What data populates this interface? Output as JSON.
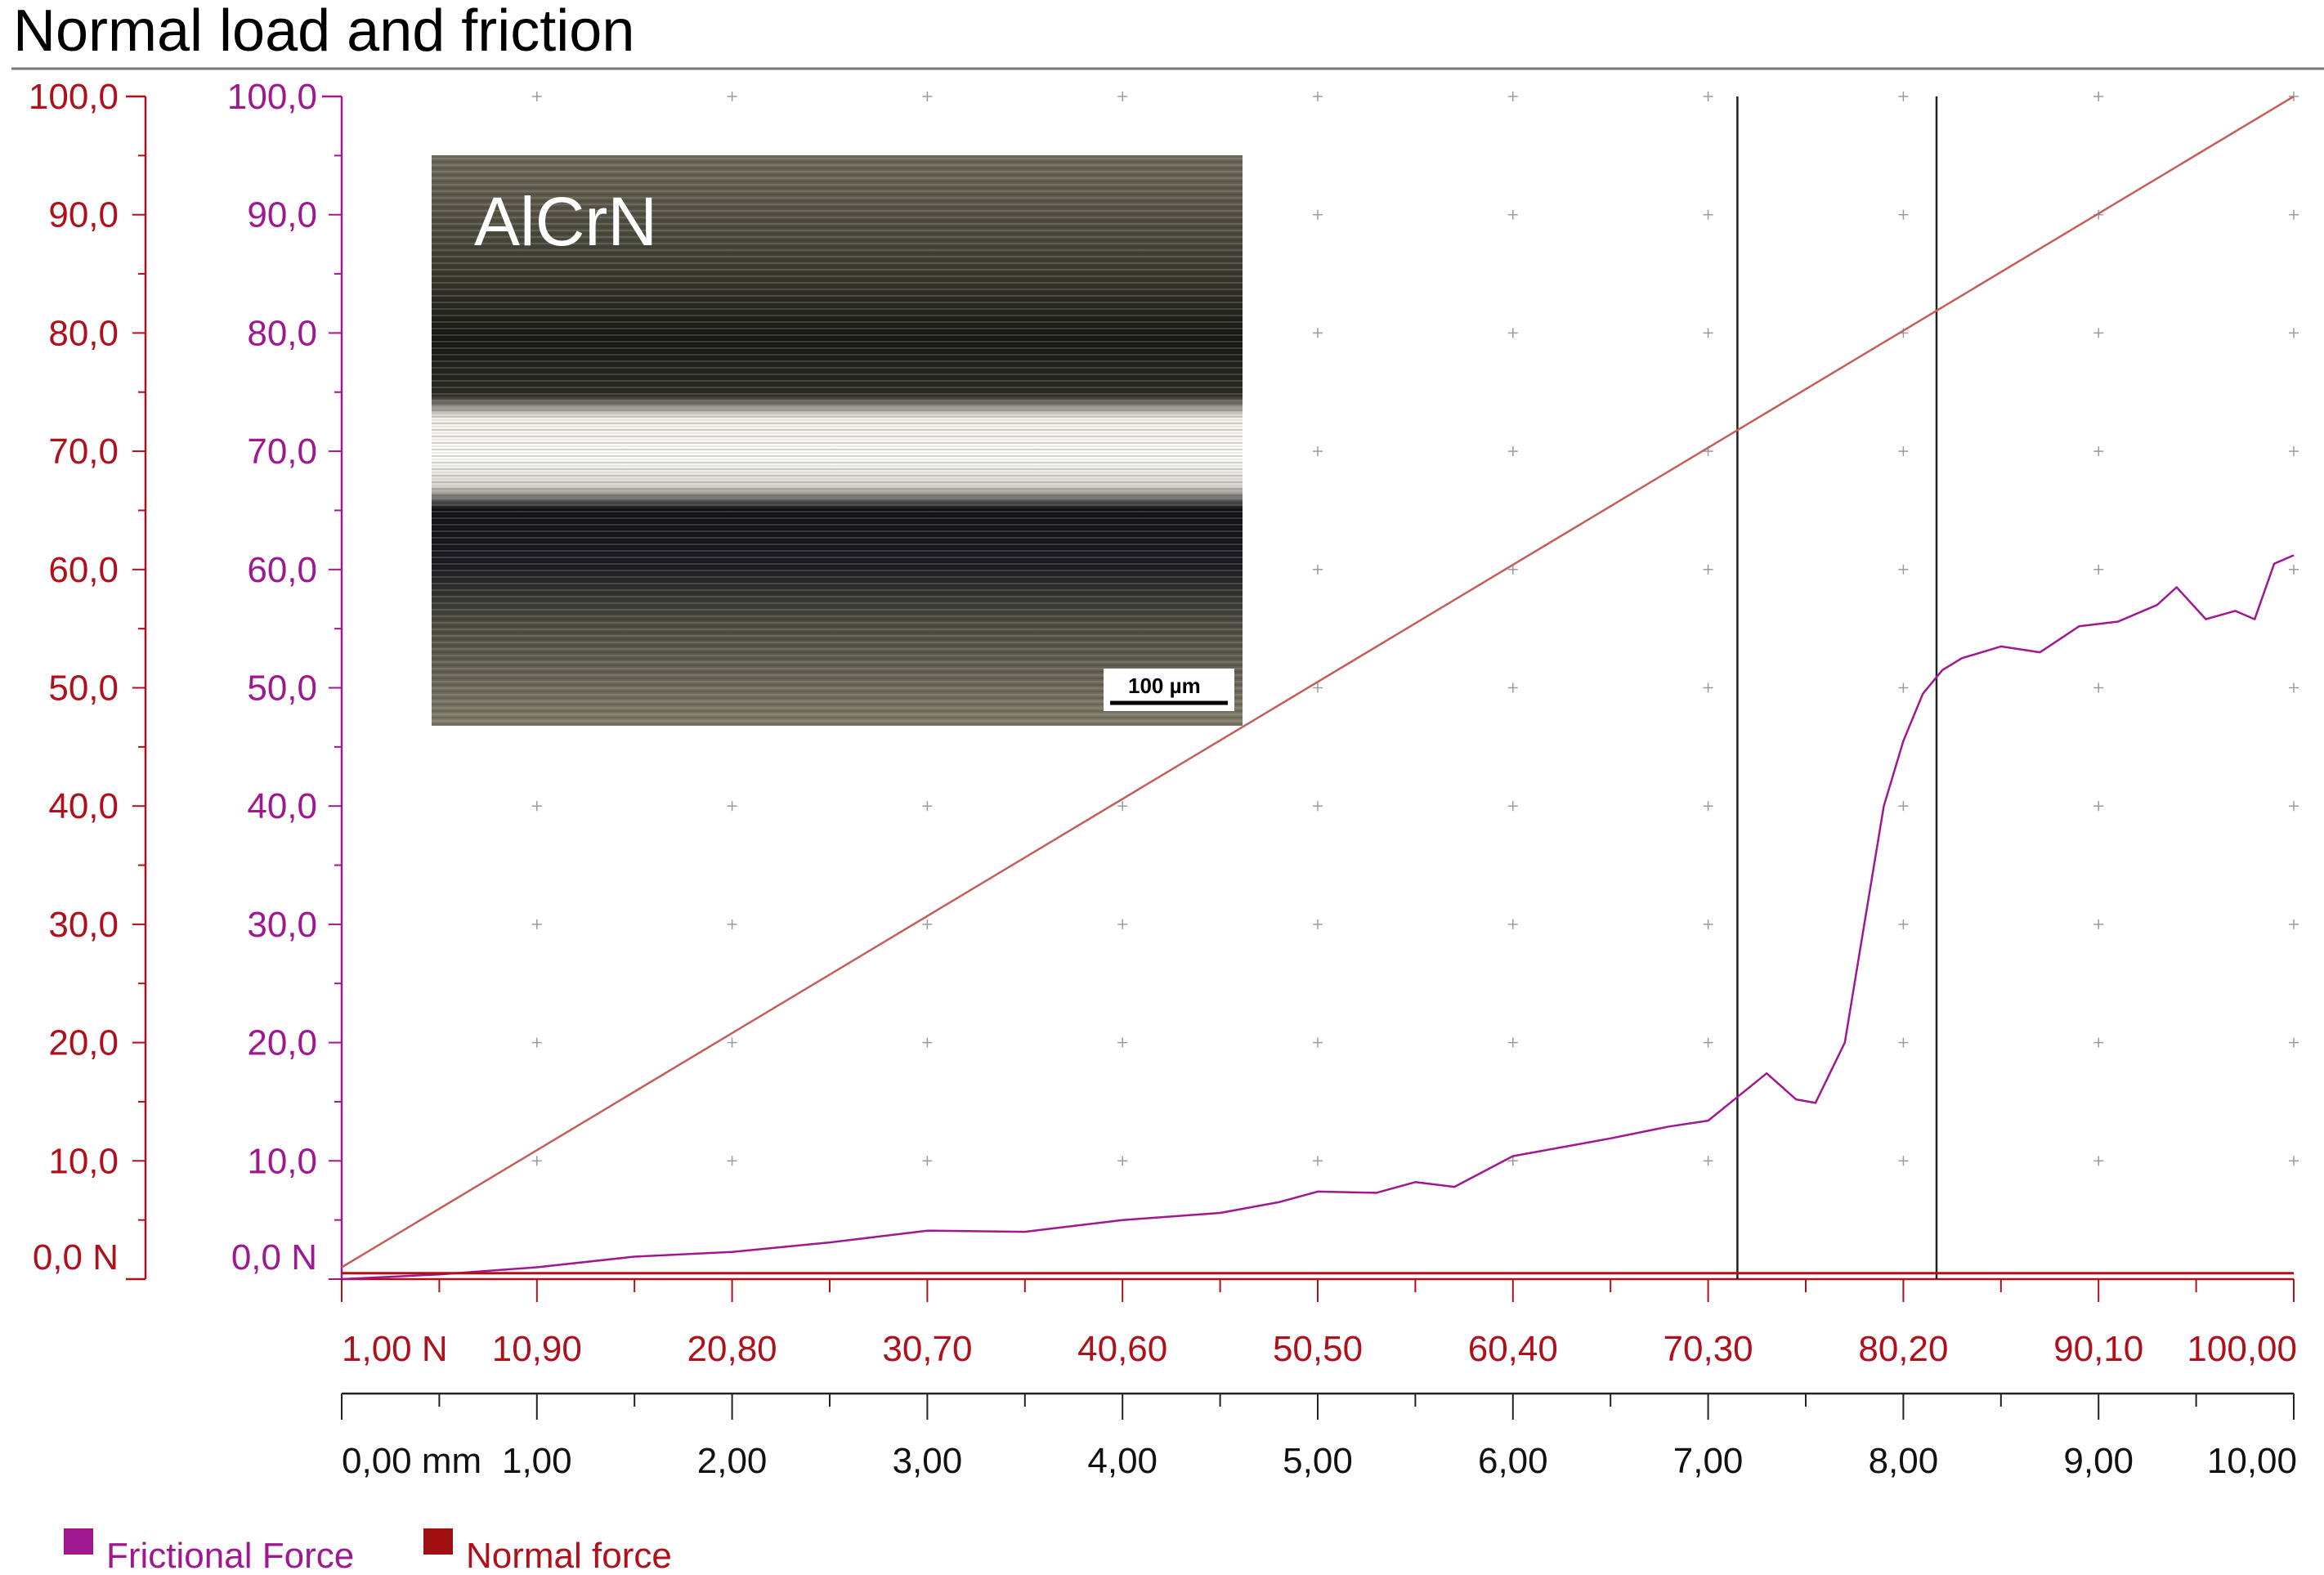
{
  "chart_data": {
    "type": "line",
    "title": "Normal load and friction",
    "left_axis_ticks": [
      "100,0",
      "90,0",
      "80,0",
      "70,0",
      "60,0",
      "50,0",
      "40,0",
      "30,0",
      "20,0",
      "10,0",
      "0,0 N"
    ],
    "right_axis_ticks": [
      "100,0",
      "90,0",
      "80,0",
      "70,0",
      "60,0",
      "50,0",
      "40,0",
      "30,0",
      "20,0",
      "10,0",
      "0,0 N"
    ],
    "ylim": [
      0,
      100
    ],
    "x_load_ticks": [
      "1,00 N",
      "10,90",
      "20,80",
      "30,70",
      "40,60",
      "50,50",
      "60,40",
      "70,30",
      "80,20",
      "90,10",
      "100,00"
    ],
    "x_distance_ticks": [
      "0,00 mm",
      "1,00",
      "2,00",
      "3,00",
      "4,00",
      "5,00",
      "6,00",
      "7,00",
      "8,00",
      "9,00",
      "10,00"
    ],
    "xlim": [
      0,
      10
    ],
    "vertical_markers_mm": [
      7.15,
      8.17
    ],
    "series": [
      {
        "name": "Frictional Force",
        "color": "#a01890",
        "x": [
          0,
          0.5,
          1.0,
          1.5,
          2.0,
          2.5,
          3.0,
          3.5,
          4.0,
          4.5,
          4.8,
          5.0,
          5.3,
          5.5,
          5.7,
          6.0,
          6.3,
          6.5,
          6.8,
          7.0,
          7.15,
          7.3,
          7.45,
          7.55,
          7.7,
          7.8,
          7.9,
          8.0,
          8.1,
          8.2,
          8.3,
          8.5,
          8.7,
          8.9,
          9.1,
          9.3,
          9.4,
          9.55,
          9.7,
          9.8,
          9.9,
          10.0
        ],
        "y": [
          0,
          0.4,
          1.0,
          1.9,
          2.3,
          3.1,
          4.1,
          4.0,
          5.0,
          5.6,
          6.5,
          7.4,
          7.3,
          8.2,
          7.8,
          10.4,
          11.3,
          11.9,
          12.9,
          13.4,
          15.4,
          17.4,
          15.2,
          14.9,
          20.0,
          30.0,
          40.0,
          45.5,
          49.5,
          51.5,
          52.5,
          53.5,
          53.0,
          55.2,
          55.6,
          57.0,
          58.5,
          55.8,
          56.5,
          55.8,
          60.5,
          61.2
        ]
      },
      {
        "name": "Normal force",
        "color": "#b0101a",
        "x": [
          0,
          10
        ],
        "y": [
          0.5,
          0.5
        ]
      },
      {
        "color": "#c0605a",
        "x": [
          0,
          10
        ],
        "y": [
          1.0,
          100.0
        ]
      }
    ],
    "inset": {
      "label": "AlCrN",
      "scale_bar": "100 µm"
    },
    "legend": [
      {
        "label": "Frictional Force",
        "color": "#a01890"
      },
      {
        "label": "Normal force",
        "color": "#b0101a"
      }
    ]
  }
}
